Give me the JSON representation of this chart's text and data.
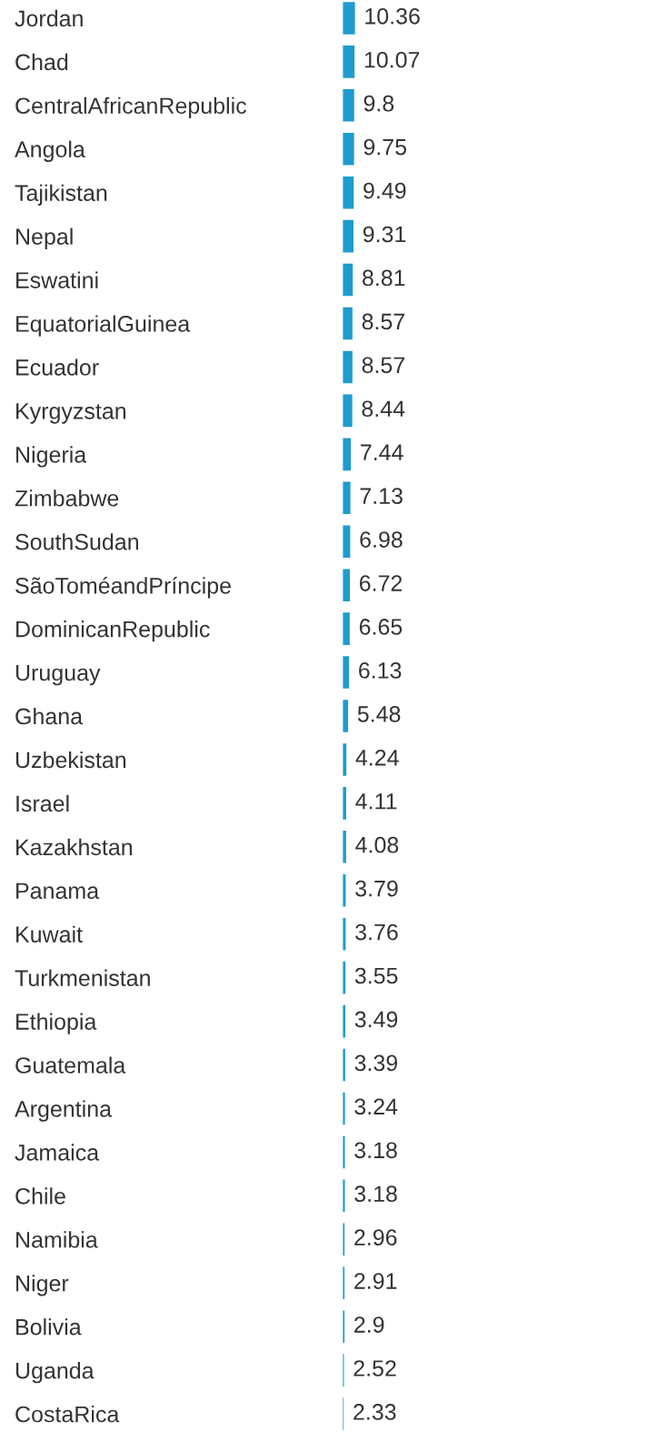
{
  "chart_data": {
    "type": "bar",
    "orientation": "horizontal",
    "data_labels": true,
    "color": "#1f9bcf",
    "categories": [
      "Jordan",
      "Chad",
      "CentralAfricanRepublic",
      "Angola",
      "Tajikistan",
      "Nepal",
      "Eswatini",
      "EquatorialGuinea",
      "Ecuador",
      "Kyrgyzstan",
      "Nigeria",
      "Zimbabwe",
      "SouthSudan",
      "SãoToméandPríncipe",
      "DominicanRepublic",
      "Uruguay",
      "Ghana",
      "Uzbekistan",
      "Israel",
      "Kazakhstan",
      "Panama",
      "Kuwait",
      "Turkmenistan",
      "Ethiopia",
      "Guatemala",
      "Argentina",
      "Jamaica",
      "Chile",
      "Namibia",
      "Niger",
      "Bolivia",
      "Uganda",
      "CostaRica"
    ],
    "values": [
      10.36,
      10.07,
      9.8,
      9.75,
      9.49,
      9.31,
      8.81,
      8.57,
      8.57,
      8.44,
      7.44,
      7.13,
      6.98,
      6.72,
      6.65,
      6.13,
      5.48,
      4.24,
      4.11,
      4.08,
      3.79,
      3.76,
      3.55,
      3.49,
      3.39,
      3.24,
      3.18,
      3.18,
      2.96,
      2.91,
      2.9,
      2.52,
      2.33
    ]
  }
}
